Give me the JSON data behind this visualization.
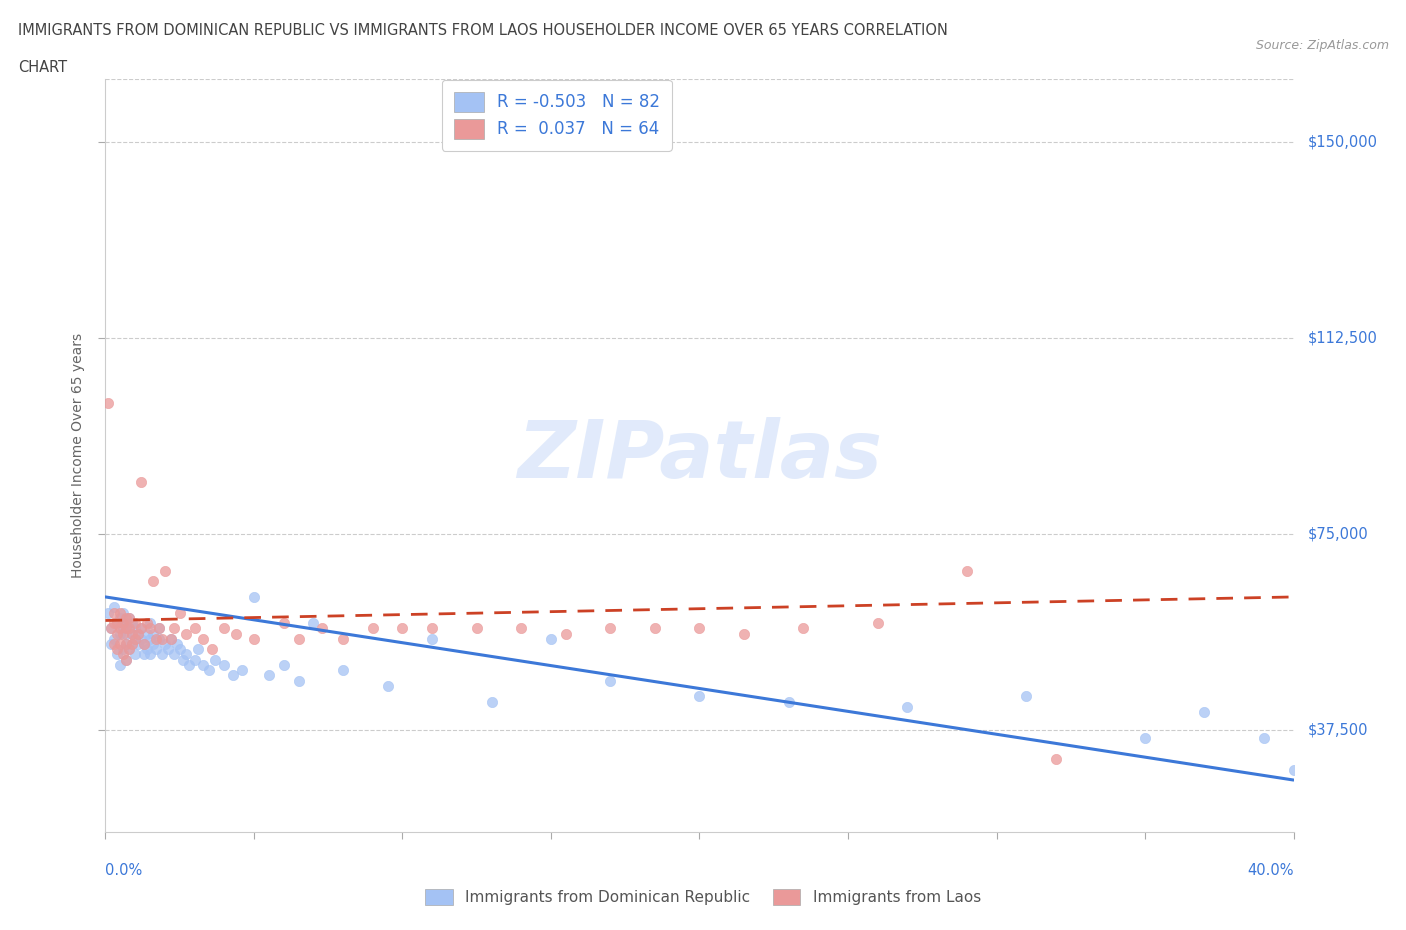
{
  "title_line1": "IMMIGRANTS FROM DOMINICAN REPUBLIC VS IMMIGRANTS FROM LAOS HOUSEHOLDER INCOME OVER 65 YEARS CORRELATION",
  "title_line2": "CHART",
  "source": "Source: ZipAtlas.com",
  "ylabel": "Householder Income Over 65 years",
  "ytick_labels": [
    "$37,500",
    "$75,000",
    "$112,500",
    "$150,000"
  ],
  "ytick_values": [
    37500,
    75000,
    112500,
    150000
  ],
  "ylim": [
    18000,
    162000
  ],
  "xlim": [
    0.0,
    0.4
  ],
  "watermark": "ZIPatlas",
  "blue_color": "#a4c2f4",
  "pink_color": "#ea9999",
  "blue_line_color": "#3c78d8",
  "pink_line_color": "#cc4125",
  "axis_color": "#cccccc",
  "grid_color": "#b7b7b7",
  "text_color": "#3c78d8",
  "title_color": "#434343",
  "blue_scatter_x": [
    0.001,
    0.002,
    0.002,
    0.003,
    0.003,
    0.004,
    0.004,
    0.005,
    0.005,
    0.005,
    0.006,
    0.006,
    0.006,
    0.007,
    0.007,
    0.007,
    0.007,
    0.008,
    0.008,
    0.008,
    0.009,
    0.009,
    0.009,
    0.01,
    0.01,
    0.01,
    0.011,
    0.011,
    0.012,
    0.012,
    0.013,
    0.013,
    0.014,
    0.014,
    0.015,
    0.015,
    0.015,
    0.016,
    0.016,
    0.017,
    0.018,
    0.018,
    0.019,
    0.02,
    0.021,
    0.022,
    0.023,
    0.024,
    0.025,
    0.026,
    0.027,
    0.028,
    0.03,
    0.031,
    0.033,
    0.035,
    0.037,
    0.04,
    0.043,
    0.046,
    0.05,
    0.055,
    0.06,
    0.065,
    0.07,
    0.08,
    0.095,
    0.11,
    0.13,
    0.15,
    0.17,
    0.2,
    0.23,
    0.27,
    0.31,
    0.35,
    0.37,
    0.39,
    0.4
  ],
  "blue_scatter_y": [
    60000,
    57000,
    54000,
    61000,
    55000,
    58000,
    52000,
    59000,
    56000,
    50000,
    57000,
    60000,
    53000,
    56000,
    58000,
    54000,
    51000,
    57000,
    59000,
    53000,
    56000,
    54000,
    58000,
    55000,
    57000,
    52000,
    56000,
    54000,
    55000,
    57000,
    54000,
    52000,
    56000,
    53000,
    55000,
    52000,
    58000,
    54000,
    56000,
    53000,
    55000,
    57000,
    52000,
    54000,
    53000,
    55000,
    52000,
    54000,
    53000,
    51000,
    52000,
    50000,
    51000,
    53000,
    50000,
    49000,
    51000,
    50000,
    48000,
    49000,
    63000,
    48000,
    50000,
    47000,
    58000,
    49000,
    46000,
    55000,
    43000,
    55000,
    47000,
    44000,
    43000,
    42000,
    44000,
    36000,
    41000,
    36000,
    30000
  ],
  "pink_scatter_x": [
    0.001,
    0.002,
    0.003,
    0.003,
    0.003,
    0.004,
    0.004,
    0.004,
    0.005,
    0.005,
    0.005,
    0.006,
    0.006,
    0.006,
    0.007,
    0.007,
    0.007,
    0.007,
    0.008,
    0.008,
    0.008,
    0.009,
    0.009,
    0.01,
    0.01,
    0.011,
    0.012,
    0.012,
    0.013,
    0.014,
    0.015,
    0.016,
    0.017,
    0.018,
    0.019,
    0.02,
    0.022,
    0.023,
    0.025,
    0.027,
    0.03,
    0.033,
    0.036,
    0.04,
    0.044,
    0.05,
    0.06,
    0.065,
    0.073,
    0.08,
    0.09,
    0.1,
    0.11,
    0.125,
    0.14,
    0.155,
    0.17,
    0.185,
    0.2,
    0.215,
    0.235,
    0.26,
    0.29,
    0.32
  ],
  "pink_scatter_y": [
    100000,
    57000,
    58000,
    60000,
    54000,
    56000,
    58000,
    53000,
    57000,
    60000,
    54000,
    58000,
    56000,
    52000,
    57000,
    59000,
    54000,
    51000,
    57000,
    59000,
    53000,
    56000,
    54000,
    58000,
    55000,
    56000,
    85000,
    57000,
    54000,
    58000,
    57000,
    66000,
    55000,
    57000,
    55000,
    68000,
    55000,
    57000,
    60000,
    56000,
    57000,
    55000,
    53000,
    57000,
    56000,
    55000,
    58000,
    55000,
    57000,
    55000,
    57000,
    57000,
    57000,
    57000,
    57000,
    56000,
    57000,
    57000,
    57000,
    56000,
    57000,
    58000,
    68000,
    32000
  ],
  "blue_trend_x": [
    0.0,
    0.4
  ],
  "blue_trend_y": [
    63000,
    28000
  ],
  "pink_trend_x": [
    0.0,
    0.4
  ],
  "pink_trend_y": [
    58500,
    63000
  ]
}
